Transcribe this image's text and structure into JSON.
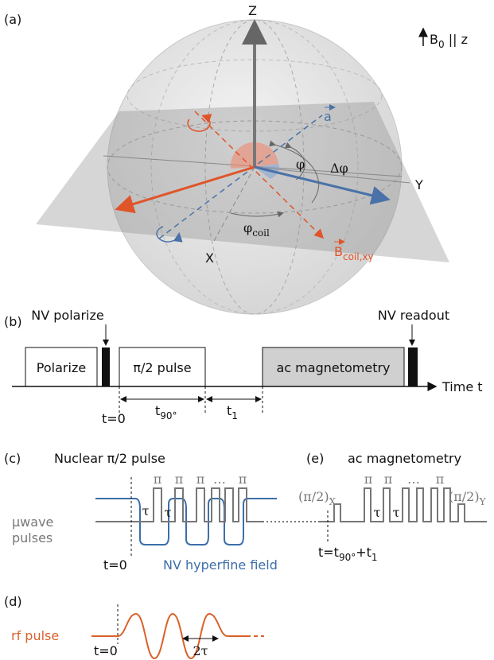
{
  "panel_a": {
    "label": "(a)",
    "axis_z": "Z",
    "axis_y": "Y",
    "axis_x": "X",
    "vector_a": "a",
    "phi": "φ",
    "delta_phi": "Δφ",
    "phi_coil": {
      "base": "φ",
      "sub": "coil"
    },
    "b_coil": {
      "base": "B",
      "sub": "coil,xy"
    },
    "b0": {
      "base": "B",
      "sub": "0",
      "rest": " || z"
    }
  },
  "panel_b": {
    "label": "(b)",
    "nv_polarize": "NV polarize",
    "nv_readout": "NV readout",
    "box_polarize": "Polarize",
    "box_pulse": "π/2 pulse",
    "box_ac": "ac magnetometry",
    "time_axis": "Time t",
    "t0": "t=0",
    "t90": {
      "base": "t",
      "sub": "90°"
    },
    "t1": {
      "base": "t",
      "sub": "1"
    }
  },
  "panel_c": {
    "label": "(c)",
    "title": "Nuclear π/2 pulse",
    "pulse_labels": [
      "π",
      "π",
      "π",
      "…",
      "π"
    ],
    "tau_labels": [
      "τ",
      "τ"
    ],
    "uwave": [
      "μwave",
      "pulses"
    ],
    "t0": "t=0",
    "field": "NV hyperfine field"
  },
  "panel_e": {
    "label": "(e)",
    "title": "ac magnetometry",
    "first_pulse": {
      "base": "(π/2)",
      "sub": "X"
    },
    "last_pulse": {
      "base": "(π/2)",
      "sub": "Y"
    },
    "pulse_labels": [
      "π",
      "π",
      "…",
      "π"
    ],
    "tau_labels": [
      "τ",
      "τ"
    ],
    "time": {
      "t": "t=t",
      "sub1": "90°",
      "plus": "+t",
      "sub2": "1"
    }
  },
  "panel_d": {
    "label": "(d)",
    "rf": "rf pulse",
    "t0": "t=0",
    "period": "2τ"
  }
}
